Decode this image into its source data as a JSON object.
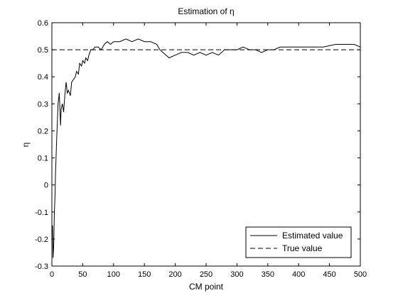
{
  "chart_data": {
    "type": "line",
    "title": "Estimation of η",
    "xlabel": "CM point",
    "ylabel": "η",
    "xlim": [
      0,
      500
    ],
    "ylim": [
      -0.3,
      0.6
    ],
    "x_ticks": [
      0,
      50,
      100,
      150,
      200,
      250,
      300,
      350,
      400,
      450,
      500
    ],
    "y_ticks": [
      -0.3,
      -0.2,
      -0.1,
      0,
      0.1,
      0.2,
      0.3,
      0.4,
      0.5,
      0.6
    ],
    "grid": false,
    "legend_position": "bottom-right",
    "series": [
      {
        "name": "Estimated value",
        "style": "solid",
        "color": "#000000",
        "x": [
          1,
          2,
          3,
          4,
          5,
          6,
          8,
          10,
          12,
          14,
          15,
          17,
          19,
          21,
          23,
          25,
          27,
          30,
          32,
          35,
          38,
          40,
          43,
          45,
          48,
          50,
          53,
          55,
          58,
          60,
          63,
          66,
          70,
          75,
          80,
          85,
          90,
          95,
          100,
          110,
          120,
          130,
          140,
          150,
          160,
          170,
          175,
          180,
          185,
          190,
          200,
          210,
          220,
          230,
          240,
          250,
          260,
          270,
          280,
          290,
          300,
          310,
          320,
          330,
          340,
          350,
          360,
          370,
          380,
          390,
          400,
          420,
          440,
          460,
          480,
          490,
          500
        ],
        "y": [
          -0.15,
          -0.27,
          -0.22,
          -0.1,
          -0.05,
          0.05,
          0.18,
          0.3,
          0.34,
          0.22,
          0.28,
          0.3,
          0.27,
          0.33,
          0.38,
          0.34,
          0.35,
          0.33,
          0.38,
          0.39,
          0.4,
          0.42,
          0.41,
          0.45,
          0.44,
          0.46,
          0.45,
          0.47,
          0.46,
          0.48,
          0.5,
          0.5,
          0.51,
          0.51,
          0.5,
          0.52,
          0.53,
          0.52,
          0.53,
          0.53,
          0.54,
          0.53,
          0.54,
          0.53,
          0.53,
          0.52,
          0.5,
          0.49,
          0.48,
          0.47,
          0.48,
          0.49,
          0.49,
          0.48,
          0.49,
          0.48,
          0.49,
          0.48,
          0.5,
          0.5,
          0.5,
          0.51,
          0.5,
          0.5,
          0.49,
          0.5,
          0.5,
          0.51,
          0.51,
          0.51,
          0.51,
          0.51,
          0.51,
          0.52,
          0.52,
          0.52,
          0.51
        ]
      },
      {
        "name": "True value",
        "style": "dashed",
        "color": "#000000",
        "x": [
          0,
          500
        ],
        "y": [
          0.5,
          0.5
        ]
      }
    ]
  }
}
